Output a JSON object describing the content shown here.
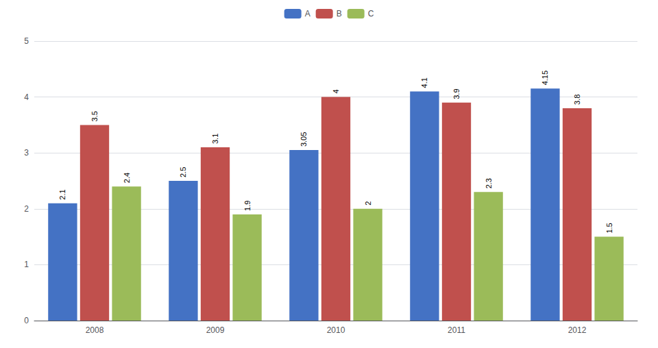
{
  "chart_data": {
    "type": "bar",
    "categories": [
      "2008",
      "2009",
      "2010",
      "2011",
      "2012"
    ],
    "series": [
      {
        "name": "A",
        "color": "#4472C4",
        "values": [
          2.1,
          2.5,
          3.05,
          4.1,
          4.15
        ]
      },
      {
        "name": "B",
        "color": "#C0504D",
        "values": [
          3.5,
          3.1,
          4.0,
          3.9,
          3.8
        ]
      },
      {
        "name": "C",
        "color": "#9BBB59",
        "values": [
          2.4,
          1.9,
          2.0,
          2.3,
          1.5
        ]
      }
    ],
    "ylim": [
      0,
      5
    ],
    "yticks": [
      0,
      1,
      2,
      3,
      4,
      5
    ],
    "grid": true,
    "legend": "top",
    "data_labels": true
  }
}
